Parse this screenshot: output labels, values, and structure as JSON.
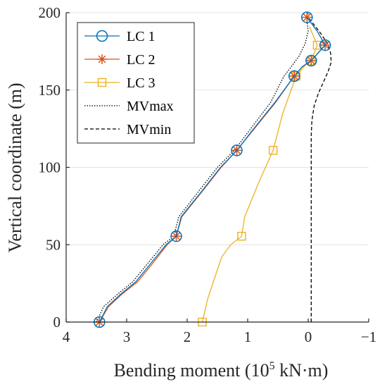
{
  "chart_data": {
    "type": "line",
    "xlabel": "Bending moment (10",
    "xlabel_sup": "5",
    "xlabel_tail": " kN·m)",
    "ylabel": "Vertical coordinate (m)",
    "xlim": [
      4,
      -1
    ],
    "ylim": [
      0,
      200
    ],
    "x_reversed": true,
    "grid": "horizontal",
    "legend_position": "top-left",
    "x_ticks": [
      4,
      3,
      2,
      1,
      0,
      -1
    ],
    "x_tick_labels": [
      "4",
      "3",
      "2",
      "1",
      "0",
      "−1"
    ],
    "y_ticks": [
      0,
      50,
      100,
      150,
      200
    ],
    "y_tick_labels": [
      "0",
      "50",
      "100",
      "150",
      "200"
    ],
    "series": [
      {
        "name": "LC 1",
        "color": "#0072BD",
        "marker": "circle",
        "x": [
          3.45,
          3.32,
          3.1,
          2.85,
          2.6,
          2.35,
          2.18,
          2.1,
          1.75,
          1.45,
          1.18,
          0.9,
          0.55,
          0.23,
          0.1,
          -0.05,
          -0.28,
          -0.15,
          0.02
        ],
        "y": [
          0,
          10,
          18,
          26,
          38,
          50,
          55.5,
          68,
          85,
          100,
          111,
          125,
          142,
          159,
          165,
          169,
          179,
          188,
          197
        ],
        "marker_x": [
          3.45,
          2.18,
          1.18,
          0.23,
          -0.05,
          -0.28,
          0.02
        ],
        "marker_y": [
          0,
          55.5,
          111,
          159,
          169,
          179,
          197
        ]
      },
      {
        "name": "LC 2",
        "color": "#D95319",
        "marker": "asterisk",
        "x": [
          3.45,
          3.3,
          3.08,
          2.82,
          2.57,
          2.33,
          2.18,
          2.09,
          1.74,
          1.44,
          1.18,
          0.89,
          0.54,
          0.23,
          0.1,
          -0.05,
          -0.28,
          -0.15,
          0.02
        ],
        "y": [
          0,
          10,
          18,
          26,
          38,
          50,
          55.5,
          68,
          85,
          100,
          111,
          125,
          142,
          159,
          165,
          169,
          179,
          188,
          197
        ],
        "marker_x": [
          3.45,
          2.18,
          1.18,
          0.23,
          -0.05,
          -0.28,
          0.02
        ],
        "marker_y": [
          0,
          55.5,
          111,
          159,
          169,
          179,
          197
        ]
      },
      {
        "name": "LC 3",
        "color": "#EDB120",
        "marker": "square",
        "x": [
          1.75,
          1.66,
          1.55,
          1.43,
          1.28,
          1.1,
          1.05,
          0.82,
          0.58,
          0.42,
          0.2,
          0.05,
          -0.05,
          -0.15,
          -0.02
        ],
        "y": [
          0,
          15,
          28,
          42,
          50,
          55.5,
          68,
          90,
          111,
          135,
          159,
          166,
          169,
          179,
          191
        ],
        "marker_x": [
          1.75,
          1.1,
          0.58,
          0.2,
          -0.05,
          -0.15
        ],
        "marker_y": [
          0,
          55.5,
          111,
          159,
          169,
          179
        ]
      },
      {
        "name": "MVmax",
        "color": "#000000",
        "marker": "none",
        "dash": "dotted",
        "x": [
          3.5,
          3.38,
          3.15,
          2.9,
          2.65,
          2.4,
          2.22,
          2.14,
          1.8,
          1.5,
          1.22,
          0.95,
          0.62,
          0.4,
          0.28,
          0.15,
          0.05,
          0.0,
          0.02,
          0.0
        ],
        "y": [
          0,
          10,
          18,
          26,
          38,
          50,
          55.5,
          68,
          85,
          100,
          111,
          125,
          142,
          159,
          165,
          172,
          180,
          188,
          194,
          200
        ]
      },
      {
        "name": "MVmin",
        "color": "#000000",
        "marker": "none",
        "dash": "dashed",
        "x": [
          -0.05,
          -0.05,
          -0.05,
          -0.05,
          -0.06,
          -0.1,
          -0.17,
          -0.25,
          -0.33,
          -0.38,
          -0.37,
          -0.32,
          -0.2,
          0.0
        ],
        "y": [
          0,
          40,
          80,
          120,
          130,
          140,
          148,
          155,
          162,
          168,
          174,
          180,
          187,
          197
        ]
      }
    ]
  }
}
